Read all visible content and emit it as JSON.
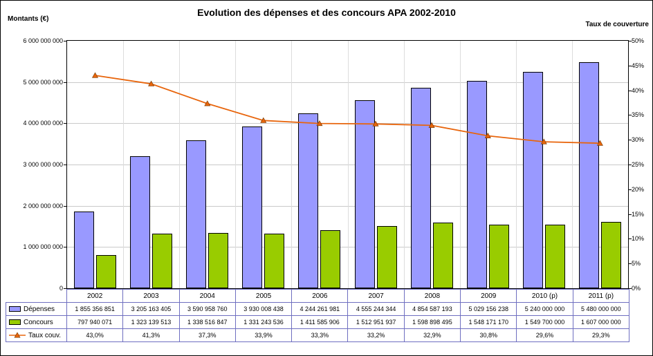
{
  "chart_data": {
    "type": "bar+line",
    "title": "Evolution des dépenses et des concours APA 2002-2010",
    "left_axis_label": "Montants (€)",
    "right_axis_label": "Taux de couverture",
    "categories": [
      "2002",
      "2003",
      "2004",
      "2005",
      "2006",
      "2007",
      "2008",
      "2009",
      "2010 (p)",
      "2011 (p)"
    ],
    "series": [
      {
        "id": "depenses",
        "name": "Dépenses",
        "type": "bar",
        "axis": "left",
        "color": "#9999FF",
        "values": [
          1855356851,
          3205163405,
          3590958760,
          3930008438,
          4244261981,
          4555244344,
          4854587193,
          5029156238,
          5240000000,
          5480000000
        ],
        "labels": [
          "1 855 356 851",
          "3 205 163 405",
          "3 590 958 760",
          "3 930 008 438",
          "4 244 261 981",
          "4 555 244 344",
          "4 854 587 193",
          "5 029 156 238",
          "5 240 000 000",
          "5 480 000 000"
        ]
      },
      {
        "id": "concours",
        "name": "Concours",
        "type": "bar",
        "axis": "left",
        "color": "#99CC00",
        "values": [
          797940071,
          1323139513,
          1338516847,
          1331243536,
          1411585906,
          1512951937,
          1598898495,
          1548171170,
          1549700000,
          1607000000
        ],
        "labels": [
          "797 940 071",
          "1 323 139 513",
          "1 338 516 847",
          "1 331 243 536",
          "1 411 585 906",
          "1 512 951 937",
          "1 598 898 495",
          "1 548 171 170",
          "1 549 700 000",
          "1 607 000 000"
        ]
      },
      {
        "id": "taux-couv",
        "name": "Taux couv.",
        "type": "line",
        "axis": "right",
        "color": "#E8650C",
        "marker": "triangle",
        "values": [
          43.0,
          41.3,
          37.3,
          33.9,
          33.3,
          33.2,
          32.9,
          30.8,
          29.6,
          29.3
        ],
        "labels": [
          "43,0%",
          "41,3%",
          "37,3%",
          "33,9%",
          "33,3%",
          "33,2%",
          "32,9%",
          "30,8%",
          "29,6%",
          "29,3%"
        ]
      }
    ],
    "left_axis": {
      "min": 0,
      "max": 6000000000,
      "step": 1000000000,
      "tick_labels": [
        "0",
        "1 000 000 000",
        "2 000 000 000",
        "3 000 000 000",
        "4 000 000 000",
        "5 000 000 000",
        "6 000 000 000"
      ]
    },
    "right_axis": {
      "min": 0,
      "max": 50,
      "step": 5,
      "tick_labels": [
        "0%",
        "5%",
        "10%",
        "15%",
        "20%",
        "25%",
        "30%",
        "35%",
        "40%",
        "45%",
        "50%"
      ]
    },
    "grid": true,
    "legend_position": "data-table-left",
    "colors": {
      "grid": "#C9C9C9",
      "table_border": "#6E6EC0",
      "axis": "#000000",
      "background": "#FFFFFF",
      "marker_edge": "#703800"
    }
  }
}
